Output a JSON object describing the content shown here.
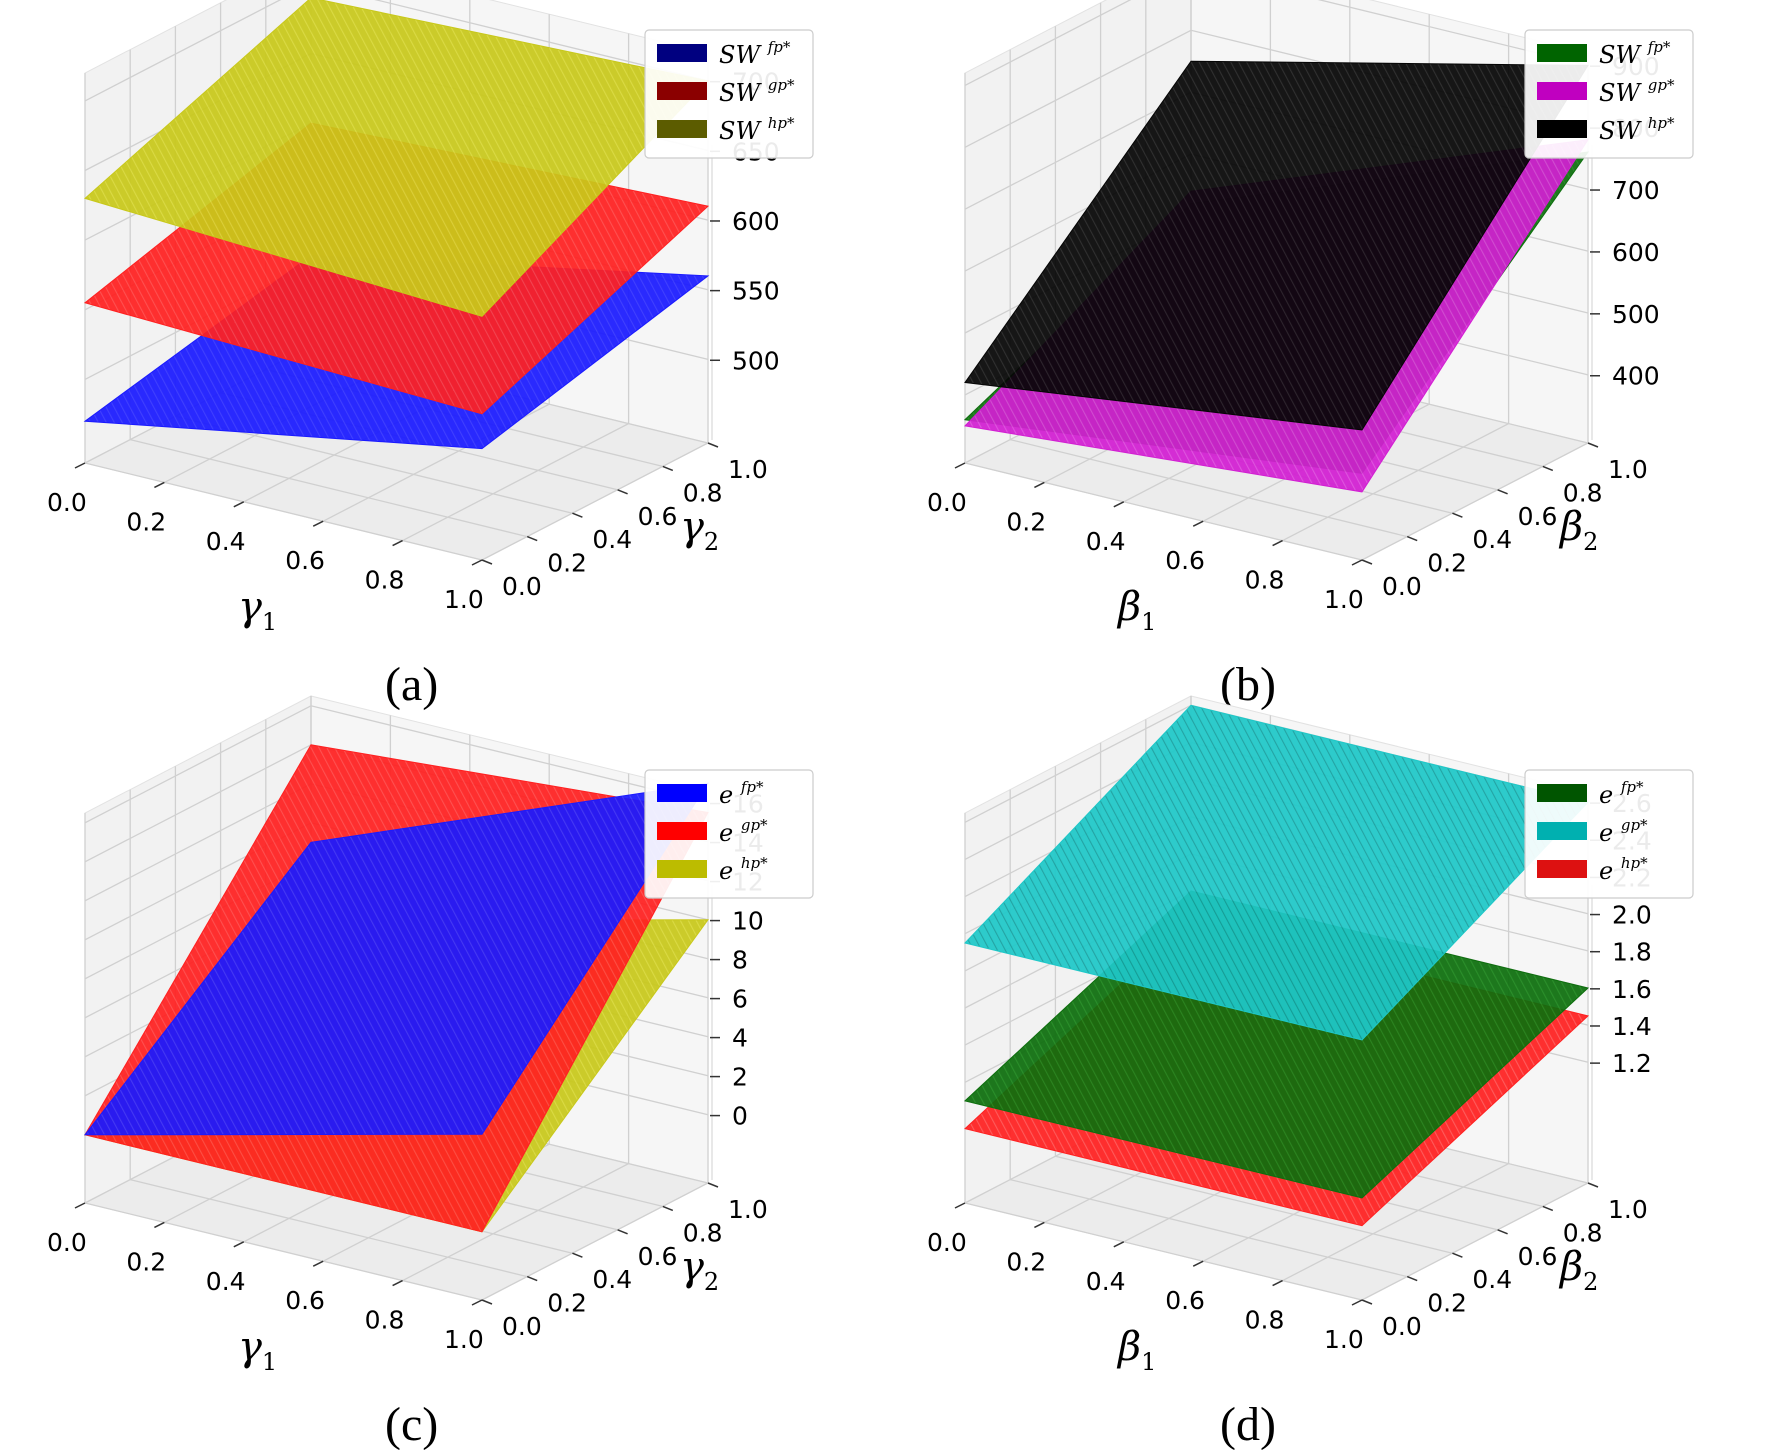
{
  "chart_data": [
    {
      "id": "a",
      "type": "surface3d",
      "caption": "(a)",
      "xlabel": {
        "sym": "γ",
        "sub": "1"
      },
      "ylabel": {
        "sym": "γ",
        "sub": "2"
      },
      "xticks": [
        "0.0",
        "0.2",
        "0.4",
        "0.6",
        "0.8",
        "1.0"
      ],
      "yticks": [
        "0.0",
        "0.2",
        "0.4",
        "0.6",
        "0.8",
        "1.0"
      ],
      "zticks": [
        "500",
        "550",
        "600",
        "650",
        "700"
      ],
      "zlim": [
        440,
        720
      ],
      "legend_position": "top-right",
      "series": [
        {
          "name": "SW",
          "sup": "fp*",
          "legend_color": "#000080",
          "color": "#1a1aff",
          "texture": "#3a3aff",
          "corners": [
            470,
            520,
            505,
            560
          ]
        },
        {
          "name": "SW",
          "sup": "gp*",
          "legend_color": "#8b0000",
          "color": "#ff2020",
          "texture": "#ff5050",
          "corners": [
            555,
            545,
            600,
            610
          ]
        },
        {
          "name": "SW",
          "sup": "hp*",
          "legend_color": "#5c5c00",
          "color": "#c8c81a",
          "texture": "#dede40",
          "corners": [
            630,
            615,
            690,
            700
          ]
        }
      ]
    },
    {
      "id": "b",
      "type": "surface3d",
      "caption": "(b)",
      "xlabel": {
        "sym": "β",
        "sub": "1"
      },
      "ylabel": {
        "sym": "β",
        "sub": "2"
      },
      "xticks": [
        "0.0",
        "0.2",
        "0.4",
        "0.6",
        "0.8",
        "1.0"
      ],
      "yticks": [
        "0.0",
        "0.2",
        "0.4",
        "0.6",
        "0.8",
        "1.0"
      ],
      "zticks": [
        "400",
        "500",
        "600",
        "700",
        "800",
        "900"
      ],
      "zlim": [
        290,
        920
      ],
      "legend_position": "top-right",
      "series": [
        {
          "name": "SW",
          "sup": "fp*",
          "legend_color": "#006400",
          "color": "#0d6e0d",
          "texture": "#1e8c1e",
          "corners": [
            360,
            430,
            520,
            760
          ]
        },
        {
          "name": "SW",
          "sup": "gp*",
          "legend_color": "#c000c0",
          "color": "#d21fd2",
          "texture": "#e055e0",
          "corners": [
            350,
            400,
            540,
            780
          ]
        },
        {
          "name": "SW",
          "sup": "hp*",
          "legend_color": "#000000",
          "color": "#050505",
          "texture": "#2a2a2a",
          "corners": [
            420,
            500,
            750,
            900
          ]
        }
      ]
    },
    {
      "id": "c",
      "type": "surface3d",
      "caption": "(c)",
      "xlabel": {
        "sym": "γ",
        "sub": "1"
      },
      "ylabel": {
        "sym": "γ",
        "sub": "2"
      },
      "xticks": [
        "0.0",
        "0.2",
        "0.4",
        "0.6",
        "0.8",
        "1.0"
      ],
      "yticks": [
        "0.0",
        "0.2",
        "0.4",
        "0.6",
        "0.8",
        "1.0"
      ],
      "zticks": [
        "0",
        "2",
        "4",
        "6",
        "8",
        "10",
        "12",
        "14",
        "16"
      ],
      "zlim": [
        -3.5,
        16.5
      ],
      "legend_position": "top-right",
      "series": [
        {
          "name": "e",
          "sup": "fp*",
          "legend_color": "#0000ff",
          "color": "#1a1aff",
          "texture": "#4040ff",
          "corners": [
            0,
            5,
            9,
            17
          ]
        },
        {
          "name": "e",
          "sup": "gp*",
          "legend_color": "#ff0000",
          "color": "#ff2020",
          "texture": "#ff5050",
          "corners": [
            0,
            0,
            14,
            15.5
          ]
        },
        {
          "name": "e",
          "sup": "hp*",
          "legend_color": "#bcbc00",
          "color": "#c8c81a",
          "texture": "#dede40",
          "corners": [
            0,
            0,
            5,
            10
          ]
        }
      ]
    },
    {
      "id": "d",
      "type": "surface3d",
      "caption": "(d)",
      "xlabel": {
        "sym": "β",
        "sub": "1"
      },
      "ylabel": {
        "sym": "β",
        "sub": "2"
      },
      "xticks": [
        "0.0",
        "0.2",
        "0.4",
        "0.6",
        "0.8",
        "1.0"
      ],
      "yticks": [
        "0.0",
        "0.2",
        "0.4",
        "0.6",
        "0.8",
        "1.0"
      ],
      "zticks": [
        "1.2",
        "1.4",
        "1.6",
        "1.8",
        "2.0",
        "2.2",
        "2.4",
        "2.6"
      ],
      "zlim": [
        0.55,
        2.65
      ],
      "legend_position": "top-right",
      "series": [
        {
          "name": "e",
          "sup": "fp*",
          "legend_color": "#005500",
          "color": "#0d6e0d",
          "texture": "#1f8f1f",
          "corners": [
            1.1,
            1.1,
            1.6,
            1.6
          ]
        },
        {
          "name": "e",
          "sup": "gp*",
          "legend_color": "#00b0b0",
          "color": "#1ec8c8",
          "texture": "#0f8f8f",
          "corners": [
            1.95,
            1.95,
            2.6,
            2.6
          ]
        },
        {
          "name": "e",
          "sup": "hp*",
          "legend_color": "#dd1111",
          "color": "#ff2020",
          "texture": "#ff6060",
          "corners": [
            0.95,
            0.95,
            1.45,
            1.45
          ]
        }
      ]
    }
  ]
}
